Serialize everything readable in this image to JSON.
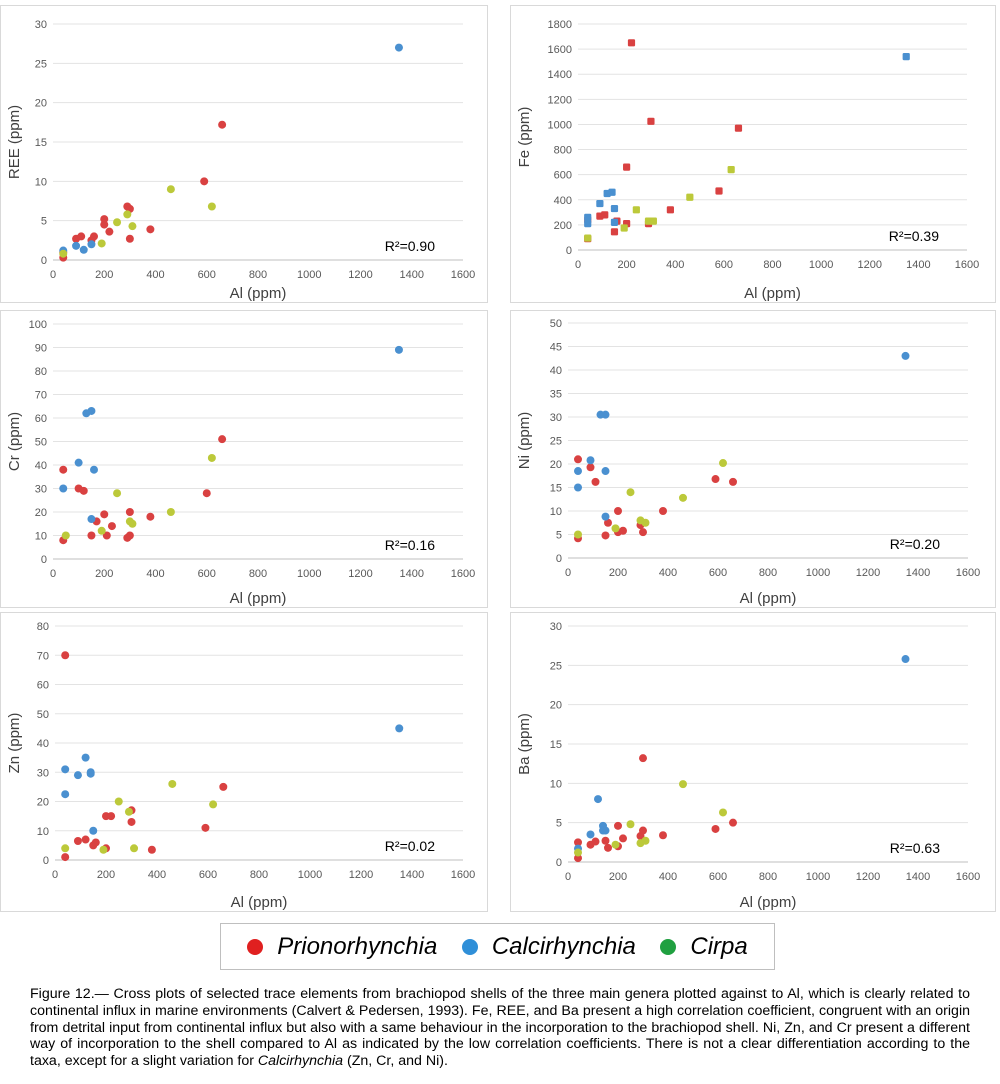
{
  "colors": {
    "Prionorhynchia": "#d94141",
    "Calcirhynchia": "#4a90d0",
    "Cirpa": "#bcc93a"
  },
  "legend": {
    "items": [
      {
        "name": "Prionorhynchia",
        "color": "#e02020"
      },
      {
        "name": "Calcirhynchia",
        "color": "#2f8fd8"
      },
      {
        "name": "Cirpa",
        "color": "#20a040"
      }
    ]
  },
  "caption": {
    "part1": "Figure 12.— Cross plots of selected trace elements from brachiopod shells of the three main genera plotted against to Al, which is clearly related to continental influx in marine environments (Calvert & Pedersen, 1993). Fe, REE, and Ba present a high correlation coefficient, congruent with an origin from detrital input from continental influx but also with a same behaviour in the incorporation to the brachiopod shell. Ni, Zn, and Cr present a different way of incorporation to the shell compared to Al as indicated by the low correlation coefficients. There is not a clear differentiation according to the taxa, except for a slight variation for ",
    "italic": "Calcirhynchia",
    "part2": " (Zn, Cr, and Ni)."
  },
  "chart_data": [
    {
      "type": "scatter",
      "id": "ree",
      "ylabel": "REE (ppm)",
      "xlabel": "Al (ppm)",
      "xlim": [
        0,
        1600
      ],
      "xticks": [
        0,
        200,
        400,
        600,
        800,
        1000,
        1200,
        1400,
        1600
      ],
      "ylim": [
        0,
        30
      ],
      "yticks": [
        0,
        5,
        10,
        15,
        20,
        25,
        30
      ],
      "annotation": "R²=0.90",
      "marker": "circle",
      "series": [
        {
          "name": "Prionorhynchia",
          "points": [
            [
              40,
              0.3
            ],
            [
              40,
              1
            ],
            [
              90,
              2.7
            ],
            [
              110,
              3
            ],
            [
              150,
              2.5
            ],
            [
              160,
              3
            ],
            [
              200,
              4.5
            ],
            [
              200,
              5.2
            ],
            [
              220,
              3.6
            ],
            [
              290,
              6.8
            ],
            [
              300,
              6.5
            ],
            [
              300,
              2.7
            ],
            [
              380,
              3.9
            ],
            [
              590,
              10
            ],
            [
              660,
              17.2
            ]
          ]
        },
        {
          "name": "Calcirhynchia",
          "points": [
            [
              40,
              1.2
            ],
            [
              90,
              1.8
            ],
            [
              120,
              1.3
            ],
            [
              150,
              2
            ],
            [
              1350,
              27
            ]
          ]
        },
        {
          "name": "Cirpa",
          "points": [
            [
              40,
              0.8
            ],
            [
              190,
              2.1
            ],
            [
              250,
              4.8
            ],
            [
              290,
              5.8
            ],
            [
              310,
              4.3
            ],
            [
              460,
              9
            ],
            [
              620,
              6.8
            ]
          ]
        }
      ]
    },
    {
      "type": "scatter",
      "id": "fe",
      "ylabel": "Fe (ppm)",
      "xlabel": "Al (ppm)",
      "xlim": [
        0,
        1600
      ],
      "xticks": [
        0,
        200,
        400,
        600,
        800,
        1000,
        1200,
        1400,
        1600
      ],
      "ylim": [
        0,
        1800
      ],
      "yticks": [
        0,
        200,
        400,
        600,
        800,
        1000,
        1200,
        1400,
        1600,
        1800
      ],
      "annotation": "R²=0.39",
      "marker": "square",
      "series": [
        {
          "name": "Prionorhynchia",
          "points": [
            [
              40,
              90
            ],
            [
              40,
              240
            ],
            [
              90,
              270
            ],
            [
              110,
              280
            ],
            [
              150,
              145
            ],
            [
              160,
              230
            ],
            [
              200,
              210
            ],
            [
              200,
              660
            ],
            [
              220,
              1650
            ],
            [
              290,
              210
            ],
            [
              300,
              1025
            ],
            [
              380,
              320
            ],
            [
              580,
              470
            ],
            [
              660,
              970
            ]
          ]
        },
        {
          "name": "Calcirhynchia",
          "points": [
            [
              40,
              210
            ],
            [
              40,
              260
            ],
            [
              90,
              370
            ],
            [
              120,
              450
            ],
            [
              140,
              460
            ],
            [
              150,
              330
            ],
            [
              150,
              220
            ],
            [
              1350,
              1540
            ]
          ]
        },
        {
          "name": "Cirpa",
          "points": [
            [
              40,
              95
            ],
            [
              190,
              175
            ],
            [
              240,
              320
            ],
            [
              290,
              230
            ],
            [
              310,
              230
            ],
            [
              460,
              420
            ],
            [
              630,
              640
            ]
          ]
        }
      ]
    },
    {
      "type": "scatter",
      "id": "cr",
      "ylabel": "Cr (ppm)",
      "xlabel": "Al (ppm)",
      "xlim": [
        0,
        1600
      ],
      "xticks": [
        0,
        200,
        400,
        600,
        800,
        1000,
        1200,
        1400,
        1600
      ],
      "ylim": [
        0,
        100
      ],
      "yticks": [
        0,
        10,
        20,
        30,
        40,
        50,
        60,
        70,
        80,
        90,
        100
      ],
      "annotation": "R²=0.16",
      "marker": "circle",
      "series": [
        {
          "name": "Prionorhynchia",
          "points": [
            [
              40,
              8
            ],
            [
              40,
              38
            ],
            [
              100,
              30
            ],
            [
              120,
              29
            ],
            [
              150,
              10
            ],
            [
              170,
              16
            ],
            [
              200,
              19
            ],
            [
              210,
              10
            ],
            [
              230,
              14
            ],
            [
              290,
              9
            ],
            [
              300,
              10
            ],
            [
              300,
              20
            ],
            [
              380,
              18
            ],
            [
              600,
              28
            ],
            [
              660,
              51
            ]
          ]
        },
        {
          "name": "Calcirhynchia",
          "points": [
            [
              40,
              30
            ],
            [
              100,
              41
            ],
            [
              130,
              62
            ],
            [
              150,
              63
            ],
            [
              150,
              17
            ],
            [
              160,
              38
            ],
            [
              1350,
              89
            ]
          ]
        },
        {
          "name": "Cirpa",
          "points": [
            [
              50,
              10
            ],
            [
              190,
              12
            ],
            [
              250,
              28
            ],
            [
              300,
              16
            ],
            [
              310,
              15
            ],
            [
              460,
              20
            ],
            [
              620,
              43
            ]
          ]
        }
      ]
    },
    {
      "type": "scatter",
      "id": "ni",
      "ylabel": "Ni (ppm)",
      "xlabel": "Al (ppm)",
      "xlim": [
        0,
        1600
      ],
      "xticks": [
        0,
        200,
        400,
        600,
        800,
        1000,
        1200,
        1400,
        1600
      ],
      "ylim": [
        0,
        50
      ],
      "yticks": [
        0,
        5,
        10,
        15,
        20,
        25,
        30,
        35,
        40,
        45,
        50
      ],
      "annotation": "R²=0.20",
      "marker": "circle",
      "series": [
        {
          "name": "Prionorhynchia",
          "points": [
            [
              40,
              4.2
            ],
            [
              40,
              21
            ],
            [
              90,
              19.3
            ],
            [
              110,
              16.2
            ],
            [
              150,
              4.8
            ],
            [
              160,
              7.5
            ],
            [
              200,
              5.5
            ],
            [
              200,
              10
            ],
            [
              220,
              5.8
            ],
            [
              290,
              7
            ],
            [
              300,
              5.5
            ],
            [
              380,
              10
            ],
            [
              590,
              16.8
            ],
            [
              660,
              16.2
            ]
          ]
        },
        {
          "name": "Calcirhynchia",
          "points": [
            [
              40,
              15
            ],
            [
              40,
              18.5
            ],
            [
              90,
              20.8
            ],
            [
              130,
              30.5
            ],
            [
              150,
              30.5
            ],
            [
              150,
              8.8
            ],
            [
              150,
              18.5
            ],
            [
              1350,
              43
            ]
          ]
        },
        {
          "name": "Cirpa",
          "points": [
            [
              40,
              5
            ],
            [
              190,
              6.3
            ],
            [
              250,
              14
            ],
            [
              290,
              8
            ],
            [
              310,
              7.5
            ],
            [
              460,
              12.8
            ],
            [
              620,
              20.2
            ]
          ]
        }
      ]
    },
    {
      "type": "scatter",
      "id": "zn",
      "ylabel": "Zn (ppm)",
      "xlabel": "Al (ppm)",
      "xlim": [
        0,
        1600
      ],
      "xticks": [
        0,
        200,
        400,
        600,
        800,
        1000,
        1200,
        1400,
        1600
      ],
      "ylim": [
        0,
        80
      ],
      "yticks": [
        0,
        10,
        20,
        30,
        40,
        50,
        60,
        70,
        80
      ],
      "annotation": "R²=0.02",
      "marker": "circle",
      "series": [
        {
          "name": "Prionorhynchia",
          "points": [
            [
              40,
              70
            ],
            [
              40,
              1
            ],
            [
              90,
              6.5
            ],
            [
              120,
              7
            ],
            [
              150,
              5
            ],
            [
              160,
              6
            ],
            [
              200,
              4
            ],
            [
              200,
              15
            ],
            [
              220,
              15
            ],
            [
              300,
              13
            ],
            [
              300,
              17
            ],
            [
              380,
              3.5
            ],
            [
              590,
              11
            ],
            [
              660,
              25
            ]
          ]
        },
        {
          "name": "Calcirhynchia",
          "points": [
            [
              40,
              22.5
            ],
            [
              40,
              31
            ],
            [
              90,
              29
            ],
            [
              120,
              35
            ],
            [
              140,
              30
            ],
            [
              140,
              29.5
            ],
            [
              150,
              10
            ],
            [
              1350,
              45
            ]
          ]
        },
        {
          "name": "Cirpa",
          "points": [
            [
              40,
              4
            ],
            [
              190,
              3.5
            ],
            [
              250,
              20
            ],
            [
              290,
              16.5
            ],
            [
              310,
              4
            ],
            [
              460,
              26
            ],
            [
              620,
              19
            ]
          ]
        }
      ]
    },
    {
      "type": "scatter",
      "id": "ba",
      "ylabel": "Ba (ppm)",
      "xlabel": "Al (ppm)",
      "xlim": [
        0,
        1600
      ],
      "xticks": [
        0,
        200,
        400,
        600,
        800,
        1000,
        1200,
        1400,
        1600
      ],
      "ylim": [
        0,
        30
      ],
      "yticks": [
        0,
        5,
        10,
        15,
        20,
        25,
        30
      ],
      "annotation": "R²=0.63",
      "marker": "circle",
      "series": [
        {
          "name": "Prionorhynchia",
          "points": [
            [
              40,
              0.5
            ],
            [
              40,
              2.5
            ],
            [
              90,
              2.2
            ],
            [
              110,
              2.6
            ],
            [
              150,
              2.7
            ],
            [
              160,
              1.8
            ],
            [
              200,
              2
            ],
            [
              200,
              4.6
            ],
            [
              220,
              3
            ],
            [
              290,
              3.3
            ],
            [
              300,
              4
            ],
            [
              300,
              13.2
            ],
            [
              380,
              3.4
            ],
            [
              590,
              4.2
            ],
            [
              660,
              5
            ]
          ]
        },
        {
          "name": "Calcirhynchia",
          "points": [
            [
              40,
              1.7
            ],
            [
              90,
              3.5
            ],
            [
              120,
              8
            ],
            [
              140,
              4.6
            ],
            [
              140,
              4
            ],
            [
              150,
              4
            ],
            [
              1350,
              25.8
            ]
          ]
        },
        {
          "name": "Cirpa",
          "points": [
            [
              40,
              1.2
            ],
            [
              190,
              2.2
            ],
            [
              250,
              4.8
            ],
            [
              290,
              2.4
            ],
            [
              310,
              2.7
            ],
            [
              460,
              9.9
            ],
            [
              620,
              6.3
            ]
          ]
        }
      ]
    }
  ]
}
